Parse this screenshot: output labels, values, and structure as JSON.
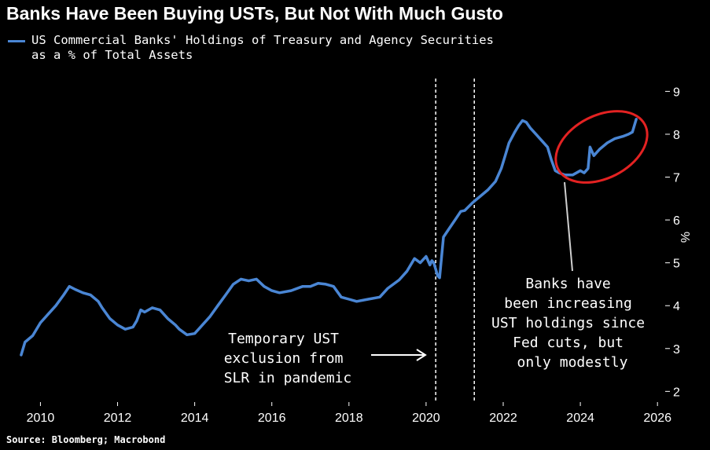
{
  "title": "Banks Have Been Buying USTs, But Not With Much Gusto",
  "legend": {
    "line1": "US Commercial Banks' Holdings of Treasury and Agency Securities",
    "line2": "as a % of Total Assets",
    "color": "#4a86d4"
  },
  "source": "Source: Bloomberg; Macrobond",
  "chart_data": {
    "type": "line",
    "title": "Banks Have Been Buying USTs, But Not With Much Gusto",
    "xlabel": "",
    "ylabel": "%",
    "xlim": [
      2009.4,
      2026.2
    ],
    "ylim": [
      1.75,
      9.3
    ],
    "x_ticks": [
      2010,
      2012,
      2014,
      2016,
      2018,
      2020,
      2022,
      2024,
      2026
    ],
    "y_ticks": [
      2,
      3,
      4,
      5,
      6,
      7,
      8,
      9
    ],
    "y_axis_position": "right",
    "grid": false,
    "series": [
      {
        "name": "US Commercial Banks' Holdings of Treasury and Agency Securities as a % of Total Assets",
        "color": "#4a86d4",
        "points": [
          [
            2009.5,
            2.85
          ],
          [
            2009.6,
            3.15
          ],
          [
            2009.8,
            3.3
          ],
          [
            2010.0,
            3.6
          ],
          [
            2010.2,
            3.8
          ],
          [
            2010.4,
            4.0
          ],
          [
            2010.6,
            4.25
          ],
          [
            2010.75,
            4.45
          ],
          [
            2010.9,
            4.38
          ],
          [
            2011.1,
            4.3
          ],
          [
            2011.3,
            4.25
          ],
          [
            2011.5,
            4.1
          ],
          [
            2011.6,
            3.95
          ],
          [
            2011.8,
            3.7
          ],
          [
            2012.0,
            3.55
          ],
          [
            2012.2,
            3.45
          ],
          [
            2012.4,
            3.5
          ],
          [
            2012.5,
            3.65
          ],
          [
            2012.6,
            3.9
          ],
          [
            2012.7,
            3.85
          ],
          [
            2012.9,
            3.95
          ],
          [
            2013.1,
            3.9
          ],
          [
            2013.3,
            3.7
          ],
          [
            2013.5,
            3.55
          ],
          [
            2013.6,
            3.45
          ],
          [
            2013.8,
            3.32
          ],
          [
            2014.0,
            3.35
          ],
          [
            2014.2,
            3.55
          ],
          [
            2014.4,
            3.75
          ],
          [
            2014.6,
            4.0
          ],
          [
            2014.8,
            4.25
          ],
          [
            2015.0,
            4.5
          ],
          [
            2015.2,
            4.62
          ],
          [
            2015.4,
            4.58
          ],
          [
            2015.6,
            4.62
          ],
          [
            2015.8,
            4.45
          ],
          [
            2016.0,
            4.35
          ],
          [
            2016.2,
            4.3
          ],
          [
            2016.5,
            4.35
          ],
          [
            2016.8,
            4.45
          ],
          [
            2017.0,
            4.45
          ],
          [
            2017.2,
            4.52
          ],
          [
            2017.4,
            4.5
          ],
          [
            2017.6,
            4.45
          ],
          [
            2017.8,
            4.2
          ],
          [
            2018.0,
            4.15
          ],
          [
            2018.2,
            4.1
          ],
          [
            2018.5,
            4.15
          ],
          [
            2018.8,
            4.2
          ],
          [
            2019.0,
            4.4
          ],
          [
            2019.3,
            4.6
          ],
          [
            2019.5,
            4.8
          ],
          [
            2019.7,
            5.1
          ],
          [
            2019.85,
            5.0
          ],
          [
            2020.0,
            5.15
          ],
          [
            2020.1,
            4.95
          ],
          [
            2020.15,
            5.05
          ],
          [
            2020.2,
            5.0
          ],
          [
            2020.3,
            4.7
          ],
          [
            2020.35,
            4.65
          ],
          [
            2020.45,
            5.6
          ],
          [
            2020.6,
            5.8
          ],
          [
            2020.75,
            6.0
          ],
          [
            2020.9,
            6.2
          ],
          [
            2021.0,
            6.22
          ],
          [
            2021.2,
            6.4
          ],
          [
            2021.4,
            6.55
          ],
          [
            2021.6,
            6.7
          ],
          [
            2021.8,
            6.9
          ],
          [
            2021.95,
            7.2
          ],
          [
            2022.05,
            7.5
          ],
          [
            2022.15,
            7.8
          ],
          [
            2022.3,
            8.05
          ],
          [
            2022.4,
            8.2
          ],
          [
            2022.5,
            8.32
          ],
          [
            2022.6,
            8.28
          ],
          [
            2022.7,
            8.15
          ],
          [
            2022.85,
            8.0
          ],
          [
            2023.0,
            7.85
          ],
          [
            2023.15,
            7.7
          ],
          [
            2023.25,
            7.4
          ],
          [
            2023.35,
            7.15
          ],
          [
            2023.45,
            7.1
          ],
          [
            2023.6,
            7.05
          ],
          [
            2023.8,
            7.05
          ],
          [
            2024.0,
            7.15
          ],
          [
            2024.1,
            7.1
          ],
          [
            2024.2,
            7.2
          ],
          [
            2024.25,
            7.7
          ],
          [
            2024.35,
            7.5
          ],
          [
            2024.5,
            7.65
          ],
          [
            2024.7,
            7.8
          ],
          [
            2024.9,
            7.9
          ],
          [
            2025.1,
            7.95
          ],
          [
            2025.25,
            8.0
          ],
          [
            2025.35,
            8.05
          ],
          [
            2025.45,
            8.35
          ]
        ]
      }
    ],
    "annotations": {
      "slr_text": [
        "Temporary UST",
        "exclusion from",
        "SLR in pandemic"
      ],
      "fed_text": [
        "Banks have",
        "been increasing",
        "UST holdings since",
        "Fed cuts, but",
        "only modestly"
      ],
      "vertical_lines_x": [
        2020.25,
        2021.25
      ],
      "highlight_color": "#e32222"
    }
  }
}
